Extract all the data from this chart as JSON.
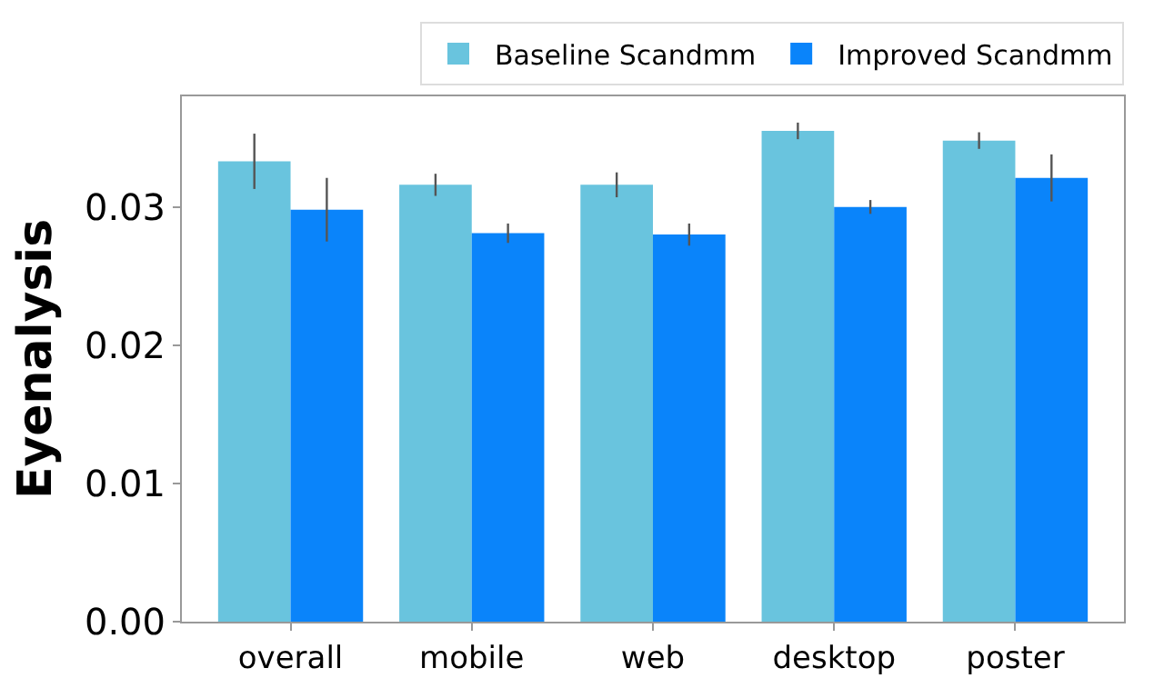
{
  "chart_data": {
    "type": "bar",
    "ylabel": "Eyenalysis",
    "categories": [
      "overall",
      "mobile",
      "web",
      "desktop",
      "poster"
    ],
    "series": [
      {
        "name": "Baseline Scandmm",
        "color": "#69c4de",
        "values": [
          0.0333,
          0.0316,
          0.0316,
          0.0355,
          0.0348
        ],
        "errors": [
          0.002,
          0.0008,
          0.0009,
          0.0006,
          0.0006
        ]
      },
      {
        "name": "Improved Scandmm",
        "color": "#0a84fa",
        "values": [
          0.0298,
          0.0281,
          0.028,
          0.03,
          0.0321
        ],
        "errors": [
          0.0023,
          0.0007,
          0.0008,
          0.0005,
          0.0017
        ]
      }
    ],
    "ylim": [
      0,
      0.038
    ],
    "yticks": [
      {
        "value": 0,
        "label": "0.00"
      },
      {
        "value": 0.01,
        "label": "0.01"
      },
      {
        "value": 0.02,
        "label": "0.02"
      },
      {
        "value": 0.03,
        "label": "0.03"
      }
    ],
    "grid": false,
    "legend": "top right"
  }
}
